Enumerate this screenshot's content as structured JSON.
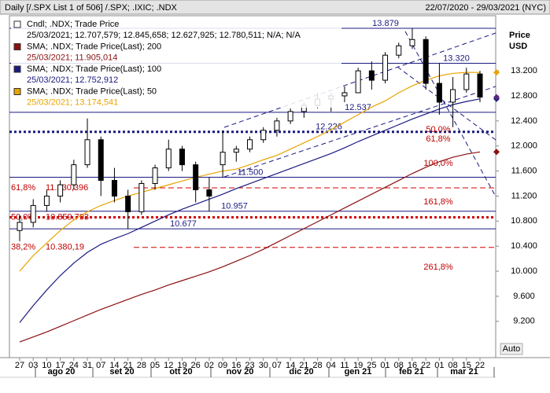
{
  "chart_data": {
    "type": "candlestick",
    "title": "Daily [/.SPX List 1 of 506] /.SPX; .IXIC; .NDX",
    "date_range": "22/07/2020 - 29/03/2021 (NYC)",
    "y_axis_label": "Price\nUSD",
    "auto_button": "Auto",
    "legend": [
      {
        "name": "Cndl; .NDX; Trade Price",
        "detail": "25/03/2021; 12.707,579; 12.845,658; 12.627,925; 12.780,511; N/A; N/A",
        "color": "#000000"
      },
      {
        "name": "SMA; .NDX; Trade Price(Last); 200",
        "detail": "25/03/2021; 11.905,014",
        "color": "#8b1010"
      },
      {
        "name": "SMA; .NDX; Trade Price(Last); 100",
        "detail": "25/03/2021; 12.752,912",
        "color": "#1a1a80"
      },
      {
        "name": "SMA; .NDX; Trade Price(Last); 50",
        "detail": "25/03/2021; 13.174,541",
        "color": "#e8a400"
      }
    ],
    "categories": [
      "27",
      "03",
      "10",
      "17",
      "24",
      "31",
      "07",
      "14",
      "21",
      "28",
      "05",
      "12",
      "19",
      "26",
      "02",
      "09",
      "16",
      "23",
      "30",
      "07",
      "14",
      "21",
      "28",
      "04",
      "11",
      "19",
      "25",
      "01",
      "08",
      "16",
      "22",
      "01",
      "08",
      "15",
      "22"
    ],
    "months": [
      "ago 20",
      "set 20",
      "ott 20",
      "nov 20",
      "dic 20",
      "gen 21",
      "feb 21",
      "mar 21"
    ],
    "open": [
      10650,
      10780,
      11050,
      11200,
      11380,
      11700,
      12100,
      11450,
      11200,
      10950,
      11400,
      11650,
      11950,
      11700,
      11300,
      11700,
      11900,
      11950,
      12100,
      12250,
      12400,
      12550,
      12650,
      12750,
      12800,
      12850,
      13200,
      13050,
      13450,
      13600,
      13700,
      13000,
      12700,
      12900,
      13150
    ],
    "high": [
      10900,
      11150,
      11300,
      11450,
      11780,
      12440,
      12150,
      11650,
      11300,
      11450,
      11700,
      12100,
      12000,
      11750,
      11500,
      12250,
      12000,
      12150,
      12300,
      12450,
      12600,
      12700,
      12850,
      12850,
      12950,
      13250,
      13350,
      13500,
      13650,
      13879,
      13750,
      13320,
      13100,
      13250,
      13200
    ],
    "low": [
      10480,
      10700,
      10950,
      11100,
      11300,
      11650,
      11200,
      11100,
      10677,
      10900,
      11300,
      11600,
      11600,
      11100,
      10957,
      11500,
      11750,
      11900,
      12050,
      12150,
      12350,
      12450,
      12600,
      12550,
      12700,
      12850,
      12900,
      13000,
      13400,
      13550,
      12900,
      12500,
      12300,
      12850,
      12700
    ],
    "close": [
      10780,
      11050,
      11200,
      11380,
      11700,
      12100,
      11450,
      11200,
      10950,
      11400,
      11650,
      11950,
      11700,
      11300,
      11200,
      11900,
      11950,
      12100,
      12250,
      12400,
      12550,
      12650,
      12750,
      12800,
      12850,
      13200,
      13050,
      13450,
      13600,
      13700,
      13000,
      12700,
      12900,
      13150,
      12780
    ],
    "series": [
      {
        "name": "SMA 200",
        "color": "#8b1010",
        "values": [
          8870,
          8950,
          9030,
          9120,
          9210,
          9300,
          9390,
          9470,
          9550,
          9630,
          9700,
          9780,
          9850,
          9920,
          9990,
          10070,
          10160,
          10250,
          10350,
          10460,
          10570,
          10680,
          10790,
          10900,
          11010,
          11120,
          11230,
          11340,
          11450,
          11560,
          11660,
          11750,
          11820,
          11870,
          11905
        ]
      },
      {
        "name": "SMA 100",
        "color": "#1a1a80",
        "values": [
          9180,
          9450,
          9700,
          9930,
          10130,
          10300,
          10430,
          10520,
          10600,
          10700,
          10800,
          10900,
          10990,
          11070,
          11150,
          11230,
          11320,
          11400,
          11480,
          11560,
          11640,
          11720,
          11800,
          11880,
          11970,
          12070,
          12160,
          12250,
          12340,
          12430,
          12510,
          12590,
          12660,
          12710,
          12752
        ]
      },
      {
        "name": "SMA 50",
        "color": "#e8a400",
        "values": [
          10000,
          10250,
          10450,
          10650,
          10820,
          10950,
          11050,
          11130,
          11200,
          11260,
          11320,
          11380,
          11440,
          11500,
          11550,
          11600,
          11630,
          11700,
          11780,
          11850,
          11950,
          12050,
          12150,
          12260,
          12380,
          12500,
          12620,
          12720,
          12850,
          12960,
          13050,
          13120,
          13160,
          13175,
          13174
        ]
      }
    ],
    "levels": [
      {
        "value": 13879,
        "label": "13.879"
      },
      {
        "value": 13320,
        "label": "13.320"
      },
      {
        "value": 12537,
        "label": "12.537"
      },
      {
        "value": 11500,
        "label": "11.500"
      },
      {
        "value": 10957,
        "label": "10.957"
      },
      {
        "value": 10677,
        "label": "10.677"
      }
    ],
    "support": {
      "value": 12226,
      "label": "12.226"
    },
    "fib_left": [
      {
        "pct": "61,8%",
        "value": 11330.396,
        "label": "11.330,396"
      },
      {
        "pct": "50,0%",
        "value": 10859.793,
        "label": "10.859,793"
      },
      {
        "pct": "38,2%",
        "value": 10380.19,
        "label": "10.380,19"
      }
    ],
    "fib_right": [
      "50,0%",
      "61,8%",
      "100,0%",
      "161,8%",
      "261,8%"
    ],
    "ylim": [
      8620,
      14080
    ],
    "yticks": [
      {
        "value": 13200,
        "label": "13.200"
      },
      {
        "value": 12800,
        "label": "12.800"
      },
      {
        "value": 12400,
        "label": "12.400"
      },
      {
        "value": 12000,
        "label": "12.000"
      },
      {
        "value": 11600,
        "label": "11.600"
      },
      {
        "value": 11200,
        "label": "11.200"
      },
      {
        "value": 10800,
        "label": "10.800"
      },
      {
        "value": 10400,
        "label": "10.400"
      },
      {
        "value": 10000,
        "label": "10.000"
      },
      {
        "value": 9600,
        "label": "9.600"
      },
      {
        "value": 9200,
        "label": "9.200"
      }
    ]
  }
}
